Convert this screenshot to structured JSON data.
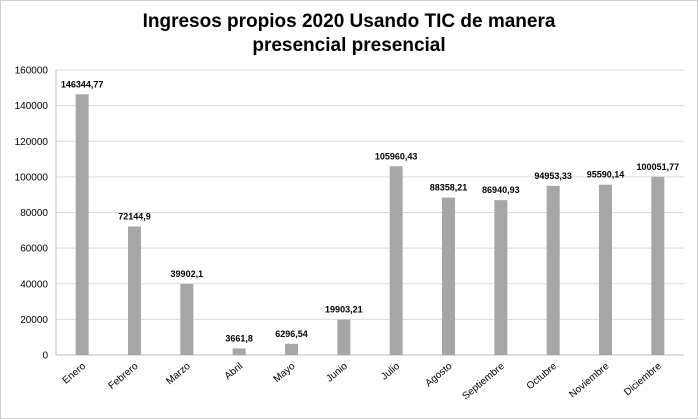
{
  "chart_data": {
    "type": "bar",
    "title_line1": "Ingresos propios 2020 Usando TIC  de manera",
    "title_line2": "presencial presencial",
    "categories": [
      "Enero",
      "Febrero",
      "Marzo",
      "Abril",
      "Mayo",
      "Junio",
      "Julio",
      "Agosto",
      "Septiembre",
      "Octubre",
      "Noviembre",
      "Diciembre"
    ],
    "values": [
      146344.77,
      72144.9,
      39902.1,
      3661.8,
      6296.54,
      19903.21,
      105960.43,
      88358.21,
      86940.93,
      94953.33,
      95590.14,
      100051.77
    ],
    "data_labels": [
      "146344,77",
      "72144,9",
      "39902,1",
      "3661,8",
      "6296,54",
      "19903,21",
      "105960,43",
      "88358,21",
      "86940,93",
      "94953,33",
      "95590,14",
      "100051,77"
    ],
    "ylim": [
      0,
      160000
    ],
    "yticks": [
      "0",
      "20000",
      "40000",
      "60000",
      "80000",
      "100000",
      "120000",
      "140000",
      "160000"
    ],
    "grid": true,
    "bar_color": "#a6a6a6",
    "grid_color": "#d9d9d9"
  }
}
